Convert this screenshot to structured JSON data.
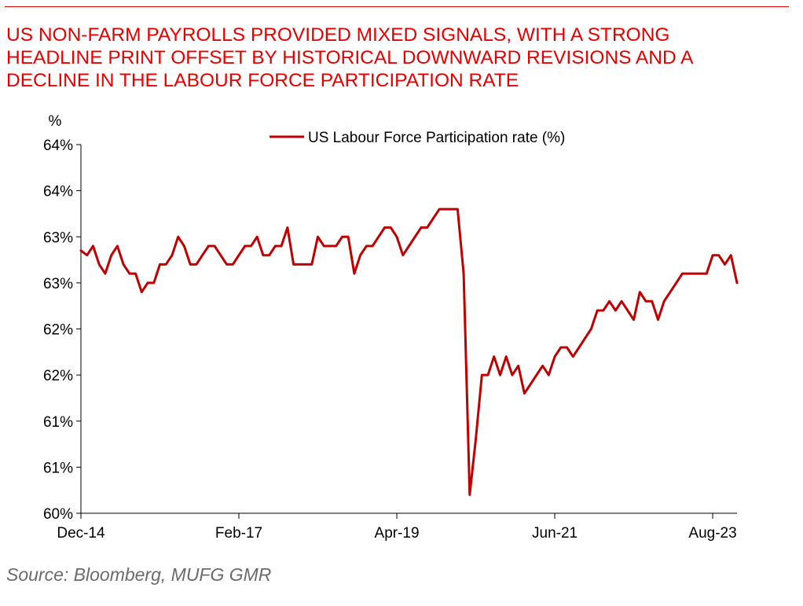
{
  "title_lines": [
    "US NON-FARM PAYROLLS PROVIDED MIXED SIGNALS, WITH A STRONG",
    "HEADLINE PRINT OFFSET BY HISTORICAL DOWNWARD REVISIONS AND A",
    "DECLINE IN THE LABOUR FORCE PARTICIPATION RATE"
  ],
  "source": "Source: Bloomberg, MUFG GMR",
  "colors": {
    "accent": "#e60000",
    "series": "#c00000",
    "axis": "#000000",
    "source_text": "#6b6b6b"
  },
  "chart_data": {
    "type": "line",
    "title": "",
    "ylabel": "%",
    "xlabel": "",
    "ylim": [
      60.0,
      64.0
    ],
    "yticks": [
      60.0,
      60.5,
      61.0,
      61.5,
      62.0,
      62.5,
      63.0,
      63.5,
      64.0
    ],
    "ytick_labels": [
      "60%",
      "61%",
      "61%",
      "62%",
      "62%",
      "63%",
      "63%",
      "64%",
      "64%"
    ],
    "xtick_dates": [
      "2014-12",
      "2017-02",
      "2019-04",
      "2021-06",
      "2023-08"
    ],
    "xtick_labels": [
      "Dec-14",
      "Feb-17",
      "Apr-19",
      "Jun-21",
      "Aug-23"
    ],
    "grid": false,
    "legend_position": "top",
    "series": [
      {
        "name": "US Labour Force Participation rate (%)",
        "color": "#c00000",
        "points": [
          [
            "2014-12",
            62.85
          ],
          [
            "2015-01",
            62.8
          ],
          [
            "2015-02",
            62.9
          ],
          [
            "2015-03",
            62.7
          ],
          [
            "2015-04",
            62.6
          ],
          [
            "2015-05",
            62.8
          ],
          [
            "2015-06",
            62.9
          ],
          [
            "2015-07",
            62.7
          ],
          [
            "2015-08",
            62.6
          ],
          [
            "2015-09",
            62.6
          ],
          [
            "2015-10",
            62.4
          ],
          [
            "2015-11",
            62.5
          ],
          [
            "2015-12",
            62.5
          ],
          [
            "2016-01",
            62.7
          ],
          [
            "2016-02",
            62.7
          ],
          [
            "2016-03",
            62.8
          ],
          [
            "2016-04",
            63.0
          ],
          [
            "2016-05",
            62.9
          ],
          [
            "2016-06",
            62.7
          ],
          [
            "2016-07",
            62.7
          ],
          [
            "2016-08",
            62.8
          ],
          [
            "2016-09",
            62.9
          ],
          [
            "2016-10",
            62.9
          ],
          [
            "2016-11",
            62.8
          ],
          [
            "2016-12",
            62.7
          ],
          [
            "2017-01",
            62.7
          ],
          [
            "2017-02",
            62.8
          ],
          [
            "2017-03",
            62.9
          ],
          [
            "2017-04",
            62.9
          ],
          [
            "2017-05",
            63.0
          ],
          [
            "2017-06",
            62.8
          ],
          [
            "2017-07",
            62.8
          ],
          [
            "2017-08",
            62.9
          ],
          [
            "2017-09",
            62.9
          ],
          [
            "2017-10",
            63.1
          ],
          [
            "2017-11",
            62.7
          ],
          [
            "2017-12",
            62.7
          ],
          [
            "2018-01",
            62.7
          ],
          [
            "2018-02",
            62.7
          ],
          [
            "2018-03",
            63.0
          ],
          [
            "2018-04",
            62.9
          ],
          [
            "2018-05",
            62.9
          ],
          [
            "2018-06",
            62.9
          ],
          [
            "2018-07",
            63.0
          ],
          [
            "2018-08",
            63.0
          ],
          [
            "2018-09",
            62.6
          ],
          [
            "2018-10",
            62.8
          ],
          [
            "2018-11",
            62.9
          ],
          [
            "2018-12",
            62.9
          ],
          [
            "2019-01",
            63.0
          ],
          [
            "2019-02",
            63.1
          ],
          [
            "2019-03",
            63.1
          ],
          [
            "2019-04",
            63.0
          ],
          [
            "2019-05",
            62.8
          ],
          [
            "2019-06",
            62.9
          ],
          [
            "2019-07",
            63.0
          ],
          [
            "2019-08",
            63.1
          ],
          [
            "2019-09",
            63.1
          ],
          [
            "2019-10",
            63.2
          ],
          [
            "2019-11",
            63.3
          ],
          [
            "2019-12",
            63.3
          ],
          [
            "2020-01",
            63.3
          ],
          [
            "2020-02",
            63.3
          ],
          [
            "2020-03",
            62.6
          ],
          [
            "2020-04",
            60.2
          ],
          [
            "2020-05",
            60.8
          ],
          [
            "2020-06",
            61.5
          ],
          [
            "2020-07",
            61.5
          ],
          [
            "2020-08",
            61.7
          ],
          [
            "2020-09",
            61.5
          ],
          [
            "2020-10",
            61.7
          ],
          [
            "2020-11",
            61.5
          ],
          [
            "2020-12",
            61.6
          ],
          [
            "2021-01",
            61.3
          ],
          [
            "2021-02",
            61.4
          ],
          [
            "2021-03",
            61.5
          ],
          [
            "2021-04",
            61.6
          ],
          [
            "2021-05",
            61.5
          ],
          [
            "2021-06",
            61.7
          ],
          [
            "2021-07",
            61.8
          ],
          [
            "2021-08",
            61.8
          ],
          [
            "2021-09",
            61.7
          ],
          [
            "2021-10",
            61.8
          ],
          [
            "2021-11",
            61.9
          ],
          [
            "2021-12",
            62.0
          ],
          [
            "2022-01",
            62.2
          ],
          [
            "2022-02",
            62.2
          ],
          [
            "2022-03",
            62.3
          ],
          [
            "2022-04",
            62.2
          ],
          [
            "2022-05",
            62.3
          ],
          [
            "2022-06",
            62.2
          ],
          [
            "2022-07",
            62.1
          ],
          [
            "2022-08",
            62.4
          ],
          [
            "2022-09",
            62.3
          ],
          [
            "2022-10",
            62.3
          ],
          [
            "2022-11",
            62.1
          ],
          [
            "2022-12",
            62.3
          ],
          [
            "2023-01",
            62.4
          ],
          [
            "2023-02",
            62.5
          ],
          [
            "2023-03",
            62.6
          ],
          [
            "2023-04",
            62.6
          ],
          [
            "2023-05",
            62.6
          ],
          [
            "2023-06",
            62.6
          ],
          [
            "2023-07",
            62.6
          ],
          [
            "2023-08",
            62.8
          ],
          [
            "2023-09",
            62.8
          ],
          [
            "2023-10",
            62.7
          ],
          [
            "2023-11",
            62.8
          ],
          [
            "2023-12",
            62.5
          ]
        ]
      }
    ]
  }
}
